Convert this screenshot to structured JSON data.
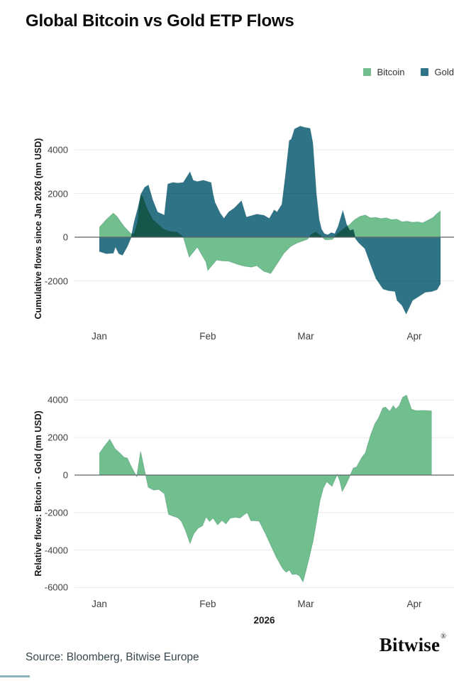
{
  "title": "Global Bitcoin vs Gold ETP Flows",
  "legend": [
    {
      "label": "Bitcoin",
      "color": "#71BE8F"
    },
    {
      "label": "Gold",
      "color": "#2E7486"
    }
  ],
  "footer": {
    "source": "Source: Bloomberg, Bitwise Europe",
    "logo": "Bitwise",
    "logo_mark": "®"
  },
  "xaxis_title": "2026",
  "colors": {
    "bitcoin": "#71BE8F",
    "bitcoin_edge": "#4f9d74",
    "gold": "#2E7486",
    "gold_edge": "#1f5f72",
    "grid": "#ebebeb",
    "zero_line": "#5f6569",
    "accent": "#2E7486"
  },
  "chart_data": [
    {
      "type": "area",
      "name": "cumulative-flows",
      "ylabel": "Cumulative flows since Jan 2026 (mn USD)",
      "yticks": [
        4000,
        2000,
        0,
        -2000
      ],
      "ylim": [
        -3600,
        5300
      ],
      "x_unit": "days since Jan 1 2026",
      "months": [
        {
          "label": "Jan",
          "day": 0
        },
        {
          "label": "Feb",
          "day": 31
        },
        {
          "label": "Mar",
          "day": 59
        },
        {
          "label": "Apr",
          "day": 90
        }
      ],
      "grid": true,
      "legend_position": "top-right",
      "series": [
        {
          "name": "Bitcoin",
          "points": [
            [
              0,
              450
            ],
            [
              2,
              800
            ],
            [
              4,
              1100
            ],
            [
              5,
              950
            ],
            [
              7,
              500
            ],
            [
              9,
              160
            ],
            [
              10,
              150
            ],
            [
              11,
              700
            ],
            [
              11.8,
              1950
            ],
            [
              12.5,
              1800
            ],
            [
              13.6,
              1300
            ],
            [
              15.2,
              810
            ],
            [
              18.3,
              360
            ],
            [
              20,
              260
            ],
            [
              22.3,
              220
            ],
            [
              24,
              0
            ],
            [
              25.7,
              -910
            ],
            [
              28,
              -450
            ],
            [
              30.5,
              -1140
            ],
            [
              31,
              -1520
            ],
            [
              33.5,
              -1040
            ],
            [
              35,
              -1080
            ],
            [
              37,
              -1100
            ],
            [
              39.5,
              -1240
            ],
            [
              41.5,
              -1330
            ],
            [
              43.5,
              -1370
            ],
            [
              45,
              -1300
            ],
            [
              47,
              -1560
            ],
            [
              49,
              -1660
            ],
            [
              50.7,
              -1240
            ],
            [
              52.7,
              -740
            ],
            [
              54.7,
              -420
            ],
            [
              56.7,
              -250
            ],
            [
              59.4,
              -100
            ],
            [
              60.7,
              130
            ],
            [
              61.8,
              230
            ],
            [
              63.3,
              60
            ],
            [
              64.6,
              -120
            ],
            [
              66.6,
              -100
            ],
            [
              68,
              150
            ],
            [
              70,
              400
            ],
            [
              71.5,
              570
            ],
            [
              73,
              800
            ],
            [
              74.5,
              950
            ],
            [
              76,
              1010
            ],
            [
              77.5,
              880
            ],
            [
              79,
              900
            ],
            [
              80.5,
              850
            ],
            [
              82,
              880
            ],
            [
              83.5,
              800
            ],
            [
              85,
              820
            ],
            [
              86.5,
              700
            ],
            [
              88,
              730
            ],
            [
              89.4,
              680
            ],
            [
              91,
              700
            ],
            [
              92.4,
              650
            ],
            [
              94,
              780
            ],
            [
              95.4,
              900
            ],
            [
              96.4,
              1060
            ],
            [
              97.5,
              1200
            ]
          ]
        },
        {
          "name": "Gold",
          "points": [
            [
              0,
              -650
            ],
            [
              2,
              -750
            ],
            [
              4,
              -730
            ],
            [
              4.6,
              -430
            ],
            [
              5.6,
              -750
            ],
            [
              6.6,
              -820
            ],
            [
              8,
              -420
            ],
            [
              9.1,
              0
            ],
            [
              10,
              700
            ],
            [
              11,
              1300
            ],
            [
              12,
              2000
            ],
            [
              13,
              2280
            ],
            [
              14,
              2380
            ],
            [
              15.2,
              1720
            ],
            [
              16.6,
              1150
            ],
            [
              18.6,
              1000
            ],
            [
              19.6,
              2430
            ],
            [
              21,
              2500
            ],
            [
              22.5,
              2470
            ],
            [
              24,
              2500
            ],
            [
              25.9,
              2980
            ],
            [
              26.8,
              2600
            ],
            [
              28,
              2540
            ],
            [
              29.7,
              2600
            ],
            [
              31.9,
              2500
            ],
            [
              32.5,
              1950
            ],
            [
              33,
              1600
            ],
            [
              34.5,
              1100
            ],
            [
              35.6,
              850
            ],
            [
              37,
              1150
            ],
            [
              38.6,
              1330
            ],
            [
              40.6,
              1660
            ],
            [
              42,
              910
            ],
            [
              43.5,
              980
            ],
            [
              45,
              1050
            ],
            [
              47,
              1000
            ],
            [
              48.6,
              850
            ],
            [
              50,
              1240
            ],
            [
              50.8,
              1140
            ],
            [
              52.2,
              1500
            ],
            [
              53.2,
              2800
            ],
            [
              54.3,
              4420
            ],
            [
              54.9,
              4480
            ],
            [
              55.8,
              4950
            ],
            [
              57.4,
              5080
            ],
            [
              58.7,
              5020
            ],
            [
              60.2,
              4980
            ],
            [
              61,
              4300
            ],
            [
              62,
              2000
            ],
            [
              62.8,
              800
            ],
            [
              63.5,
              350
            ],
            [
              64.3,
              150
            ],
            [
              65.3,
              100
            ],
            [
              66.3,
              200
            ],
            [
              67.3,
              150
            ],
            [
              68.3,
              500
            ],
            [
              69.6,
              1200
            ],
            [
              70.6,
              600
            ],
            [
              71.6,
              300
            ],
            [
              72.6,
              350
            ],
            [
              73.2,
              -60
            ],
            [
              74.2,
              -260
            ],
            [
              75.9,
              -520
            ],
            [
              77.9,
              -1400
            ],
            [
              79.1,
              -1900
            ],
            [
              81.1,
              -2370
            ],
            [
              82.7,
              -2450
            ],
            [
              84.5,
              -2480
            ],
            [
              85.1,
              -2890
            ],
            [
              86.5,
              -3120
            ],
            [
              87.7,
              -3510
            ],
            [
              89.5,
              -2890
            ],
            [
              91.1,
              -2730
            ],
            [
              93.1,
              -2520
            ],
            [
              95.1,
              -2480
            ],
            [
              96.5,
              -2400
            ],
            [
              97.5,
              -2120
            ]
          ]
        }
      ]
    },
    {
      "type": "area",
      "name": "relative-flows",
      "ylabel": "Relative flows: Bitcoin - Gold (mn USD)",
      "yticks": [
        4000,
        2000,
        0,
        -2000,
        -4000,
        -6000
      ],
      "ylim": [
        -6200,
        4600
      ],
      "x_unit": "days since Jan 1 2026",
      "months": [
        {
          "label": "Jan",
          "day": 0
        },
        {
          "label": "Feb",
          "day": 31
        },
        {
          "label": "Mar",
          "day": 59
        },
        {
          "label": "Apr",
          "day": 90
        }
      ],
      "grid": true,
      "legend_position": "none",
      "series": [
        {
          "name": "Bitcoin - Gold",
          "points": [
            [
              0,
              1150
            ],
            [
              1.5,
              1550
            ],
            [
              3,
              1900
            ],
            [
              4.5,
              1400
            ],
            [
              6,
              1150
            ],
            [
              7,
              950
            ],
            [
              8,
              900
            ],
            [
              9,
              500
            ],
            [
              10,
              150
            ],
            [
              10.7,
              -80
            ],
            [
              11.8,
              1250
            ],
            [
              13,
              200
            ],
            [
              14,
              -650
            ],
            [
              15.5,
              -800
            ],
            [
              17,
              -760
            ],
            [
              18.6,
              -1000
            ],
            [
              19.8,
              -2100
            ],
            [
              21,
              -2180
            ],
            [
              22.5,
              -2280
            ],
            [
              23.5,
              -2480
            ],
            [
              24.7,
              -2980
            ],
            [
              25.9,
              -3640
            ],
            [
              27,
              -3130
            ],
            [
              28.2,
              -2840
            ],
            [
              29.5,
              -2700
            ],
            [
              30.5,
              -2230
            ],
            [
              31.5,
              -2470
            ],
            [
              32.5,
              -2290
            ],
            [
              33.8,
              -2650
            ],
            [
              35,
              -2420
            ],
            [
              36.2,
              -2600
            ],
            [
              37.4,
              -2300
            ],
            [
              38.8,
              -2250
            ],
            [
              40.2,
              -2290
            ],
            [
              41.3,
              -2120
            ],
            [
              42.3,
              -2000
            ],
            [
              43.3,
              -2430
            ],
            [
              44.3,
              -2430
            ],
            [
              45.7,
              -2460
            ],
            [
              47.6,
              -3170
            ],
            [
              48.9,
              -3700
            ],
            [
              50.5,
              -4350
            ],
            [
              52.4,
              -4990
            ],
            [
              53.4,
              -5180
            ],
            [
              54.3,
              -5060
            ],
            [
              55.1,
              -5300
            ],
            [
              56.3,
              -5280
            ],
            [
              57.2,
              -5380
            ],
            [
              58.2,
              -5690
            ],
            [
              59.2,
              -5000
            ],
            [
              60.1,
              -4300
            ],
            [
              61.1,
              -3500
            ],
            [
              62,
              -2550
            ],
            [
              63,
              -1400
            ],
            [
              64,
              -700
            ],
            [
              65,
              -350
            ],
            [
              66.5,
              -600
            ],
            [
              67.3,
              -250
            ],
            [
              68,
              30
            ],
            [
              68.7,
              -300
            ],
            [
              69.4,
              -870
            ],
            [
              70.5,
              -500
            ],
            [
              71.7,
              0
            ],
            [
              72.6,
              380
            ],
            [
              73.5,
              420
            ],
            [
              75,
              940
            ],
            [
              76,
              1170
            ],
            [
              77.5,
              2110
            ],
            [
              78.8,
              2750
            ],
            [
              79.8,
              3050
            ],
            [
              81,
              3580
            ],
            [
              81.8,
              3620
            ],
            [
              83,
              3390
            ],
            [
              84,
              3700
            ],
            [
              84.7,
              3510
            ],
            [
              85.7,
              3700
            ],
            [
              86.7,
              4150
            ],
            [
              87.8,
              4260
            ],
            [
              89.2,
              3510
            ],
            [
              90.5,
              3430
            ],
            [
              93,
              3445
            ],
            [
              95,
              3420
            ]
          ]
        }
      ]
    }
  ]
}
